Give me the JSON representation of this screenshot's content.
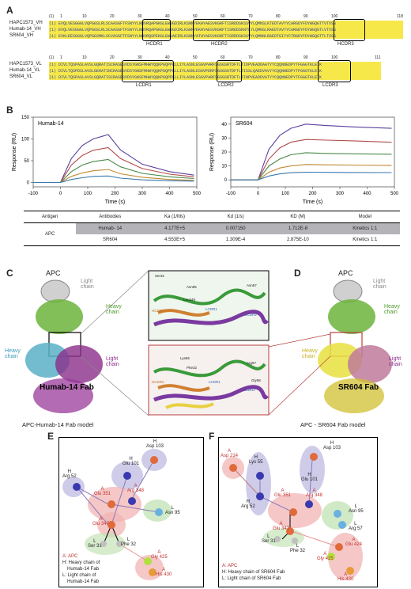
{
  "panels": {
    "A": "A",
    "B": "B",
    "C": "C",
    "D": "D",
    "E": "E",
    "F": "F"
  },
  "panelA": {
    "vh_names": [
      "HAPC1573_VH",
      "Humab-14_VH",
      "SR604_VH"
    ],
    "vh_ticks": [
      "(1)",
      "1",
      "10",
      "20",
      "30",
      "40",
      "50",
      "60",
      "70",
      "80",
      "90",
      "100",
      "118"
    ],
    "vh_seq": [
      "(1) EVQLVESGGGLVQPGGSLRLSCAASGFTFSNYYLNWVRQAPGKGLEWVGDIRLKSNNYEKHYAESVKGRFTISRDDSKSSVYLQMNSLKTEDTAVYYCARGDYFDYWGQGTTVTVSS",
      "(1) EVQLVESGGGLVQPGGSLRLSCAASGFTFSNYYLNWVRQAPGKGLEWVGDIRLKSNNYEKHYAESVKGRFTISRDDSKNTLYLQMNSLRAEDTAVYYCARGDYFDYWGQGTLVTVSS",
      "(1) EVKLEESGGGLVQPGGSMKLSCVASGFTFSNYYLNWVRQSPEKGLEWVAEIRLKSNNYATHYAESVKGRFTISRDDSKSSVYLQMNNLRAEDTGIYYCTRGDYFDYWGQGTTLTVSS"
    ],
    "vh_cdrs": [
      "HCDR1",
      "HCDR2",
      "HCDR3"
    ],
    "vl_names": [
      "HAPC1573_VL",
      "Humab-14_VL",
      "SR604_VL"
    ],
    "vl_ticks": [
      "(1)",
      "1",
      "10",
      "20",
      "30",
      "40",
      "50",
      "60",
      "70",
      "80",
      "90",
      "100",
      "111"
    ],
    "vl_seq": [
      "(1) DIVLTQSPASLAVSLGQRATISCRASESVDSYGNSFMHWYQQKPGQPPKLLIYLASNLESGVPARFSGSGSRTDFTLTIDPVEADDAATYYCQQNNEDPYTFGGGTKLEIK",
      "(1) DIVLTQSPDSLAVSLGERATINCRASESVDSYGNSFMHWYQQKPGQPPKLLIYLASNLESGVPDRFSGSGSGTDFTLTISSLQAEDVAVYYCQQNNEDPYTFGGGTKLEIK",
      "(1) DIVLTQSPASLAVSLGQRATISCRASESVDSYGNSFMHWYQQKPGQPPKLLIYLASNLESGVPARFSGSGSRTDFTLTINPVEADDVATYYCQQNNEDPYTFGGGTKLEIK"
    ],
    "vl_cdrs": [
      "LCDR1",
      "LCDR2",
      "LCDR3"
    ]
  },
  "panelB": {
    "table": {
      "headers": [
        "Antigen",
        "Antibodies",
        "Ka (1/Ms)",
        "Kd (1/s)",
        "KD (M)",
        "Model"
      ],
      "antigen": "APC",
      "rows": [
        [
          "Humab- 14",
          "4.177E+5",
          "0.007150",
          "1.712E-8",
          "Kinetics 1:1"
        ],
        [
          "SR604",
          "4.553E+5",
          "1.309E-4",
          "2.875E-10",
          "Kinetics 1:1"
        ]
      ]
    }
  },
  "chart_data": [
    {
      "type": "line",
      "title": "Humab-14",
      "xlabel": "Time (s)",
      "ylabel": "Response (RU)",
      "xlim": [
        -100,
        500
      ],
      "ylim": [
        -10,
        150
      ],
      "xticks": [
        -100,
        0,
        100,
        200,
        300,
        400,
        500
      ],
      "yticks": [
        0,
        50,
        100,
        150
      ],
      "series": [
        {
          "x": [
            -100,
            0,
            40,
            80,
            120,
            175,
            220,
            300,
            400,
            490
          ],
          "y": [
            0,
            0,
            55,
            85,
            100,
            110,
            75,
            42,
            25,
            17
          ],
          "color": "#5a3fa0"
        },
        {
          "x": [
            -100,
            0,
            40,
            80,
            120,
            175,
            220,
            300,
            400,
            490
          ],
          "y": [
            0,
            0,
            40,
            62,
            74,
            80,
            55,
            32,
            19,
            13
          ],
          "color": "#b34a4a"
        },
        {
          "x": [
            -100,
            0,
            40,
            80,
            120,
            175,
            220,
            300,
            400,
            490
          ],
          "y": [
            0,
            0,
            25,
            40,
            48,
            53,
            36,
            21,
            13,
            9
          ],
          "color": "#4a8a4a"
        },
        {
          "x": [
            -100,
            0,
            40,
            80,
            120,
            175,
            220,
            300,
            400,
            490
          ],
          "y": [
            0,
            0,
            14,
            22,
            27,
            30,
            20,
            12,
            7,
            5
          ],
          "color": "#c08a30"
        },
        {
          "x": [
            -100,
            0,
            40,
            80,
            120,
            175,
            220,
            300,
            400,
            490
          ],
          "y": [
            0,
            0,
            7,
            11,
            14,
            15,
            10,
            6,
            4,
            3
          ],
          "color": "#3a7ab0"
        }
      ]
    },
    {
      "type": "line",
      "title": "SR604",
      "xlabel": "Time (s)",
      "ylabel": "Response (RU)",
      "xlim": [
        -100,
        500
      ],
      "ylim": [
        -5,
        45
      ],
      "xticks": [
        -100,
        0,
        100,
        200,
        300,
        400,
        500
      ],
      "yticks": [
        0,
        10,
        20,
        30,
        40
      ],
      "series": [
        {
          "x": [
            -100,
            0,
            40,
            80,
            120,
            175,
            250,
            350,
            490
          ],
          "y": [
            0,
            0,
            22,
            32,
            37,
            40,
            39,
            38,
            37
          ],
          "color": "#5a3fa0"
        },
        {
          "x": [
            -100,
            0,
            40,
            80,
            120,
            175,
            250,
            350,
            490
          ],
          "y": [
            0,
            0,
            15,
            23,
            27,
            29,
            28.5,
            28,
            27
          ],
          "color": "#b34a4a"
        },
        {
          "x": [
            -100,
            0,
            40,
            80,
            120,
            175,
            250,
            350,
            490
          ],
          "y": [
            0,
            0,
            10,
            15,
            18,
            19.5,
            19,
            18.7,
            18.4
          ],
          "color": "#4a8a4a"
        },
        {
          "x": [
            -100,
            0,
            40,
            80,
            120,
            175,
            250,
            350,
            490
          ],
          "y": [
            0,
            0,
            5.5,
            8.5,
            10,
            11,
            10.8,
            10.6,
            10.4
          ],
          "color": "#c08a30"
        },
        {
          "x": [
            -100,
            0,
            40,
            80,
            120,
            175,
            250,
            350,
            490
          ],
          "y": [
            0,
            0,
            2.8,
            4.3,
            5.1,
            5.5,
            5.4,
            5.3,
            5.2
          ],
          "color": "#3a7ab0"
        }
      ]
    }
  ],
  "panelC": {
    "apc": "APC",
    "light_chain_top": "Light chain",
    "heavy_chain": "Heavy chain",
    "heavy_chain_left": "Heavy chain",
    "light_chain": "Light chain",
    "fab_label": "Humab-14 Fab",
    "caption": "APC-Humab-14 Fab model",
    "zoom_top_labels": [
      "Ser31",
      "Asn95",
      "Asn57",
      "HCDR2",
      "LCDR1",
      "LCDR2",
      "Leu349"
    ],
    "zoom_bottom_labels": [
      "Lys55",
      "Phe32",
      "Arg57",
      "Gly58",
      "HCDR2",
      "LCDR1",
      "LCDR2"
    ]
  },
  "panelD": {
    "apc": "APC",
    "light_chain_top": "Light chain",
    "heavy_chain": "Heavy chain",
    "heavy_chain_left": "Heavy chain",
    "light_chain": "Light chain",
    "fab_label": "SR604 Fab",
    "caption": "APC - SR604 Fab model"
  },
  "panelE": {
    "nodes": [
      {
        "prefix": "H",
        "name": "Glu 101"
      },
      {
        "prefix": "H",
        "name": "Asp 103"
      },
      {
        "prefix": "H",
        "name": "Arg 52"
      },
      {
        "prefix": "A",
        "name": "Glu 351"
      },
      {
        "prefix": "A",
        "name": "Arg 348"
      },
      {
        "prefix": "L",
        "name": "Asn 95"
      },
      {
        "prefix": "A",
        "name": "Glu 347"
      },
      {
        "prefix": "L",
        "name": "Ser 31"
      },
      {
        "prefix": "L",
        "name": "Phe 32"
      },
      {
        "prefix": "A",
        "name": "Gly 425"
      },
      {
        "prefix": "A",
        "name": "His 430"
      }
    ],
    "legend": [
      "A: APC",
      "H: Heavy chain of",
      "Humab-14 Fab",
      "L: Light chain of",
      "Humab-14 Fab"
    ]
  },
  "panelF": {
    "nodes": [
      {
        "prefix": "A",
        "name": "Asp 214"
      },
      {
        "prefix": "H",
        "name": "Lys 55"
      },
      {
        "prefix": "H",
        "name": "Glu 101"
      },
      {
        "prefix": "H",
        "name": "Asp 103"
      },
      {
        "prefix": "H",
        "name": "Arg 52"
      },
      {
        "prefix": "A",
        "name": "Glu 351"
      },
      {
        "prefix": "A",
        "name": "Arg 348"
      },
      {
        "prefix": "L",
        "name": "Asn 95"
      },
      {
        "prefix": "L",
        "name": "Arg 57"
      },
      {
        "prefix": "A",
        "name": "Glu 347"
      },
      {
        "prefix": "L",
        "name": "Ser 31"
      },
      {
        "prefix": "L",
        "name": "Phe 32"
      },
      {
        "prefix": "A",
        "name": "Glu 424"
      },
      {
        "prefix": "A",
        "name": "Gly 425"
      },
      {
        "prefix": "A",
        "name": "His 430"
      }
    ],
    "legend": [
      "A: APC",
      "H: Heavy chain of SR604 Fab",
      "L: Light chain of SR604 Fab"
    ]
  }
}
